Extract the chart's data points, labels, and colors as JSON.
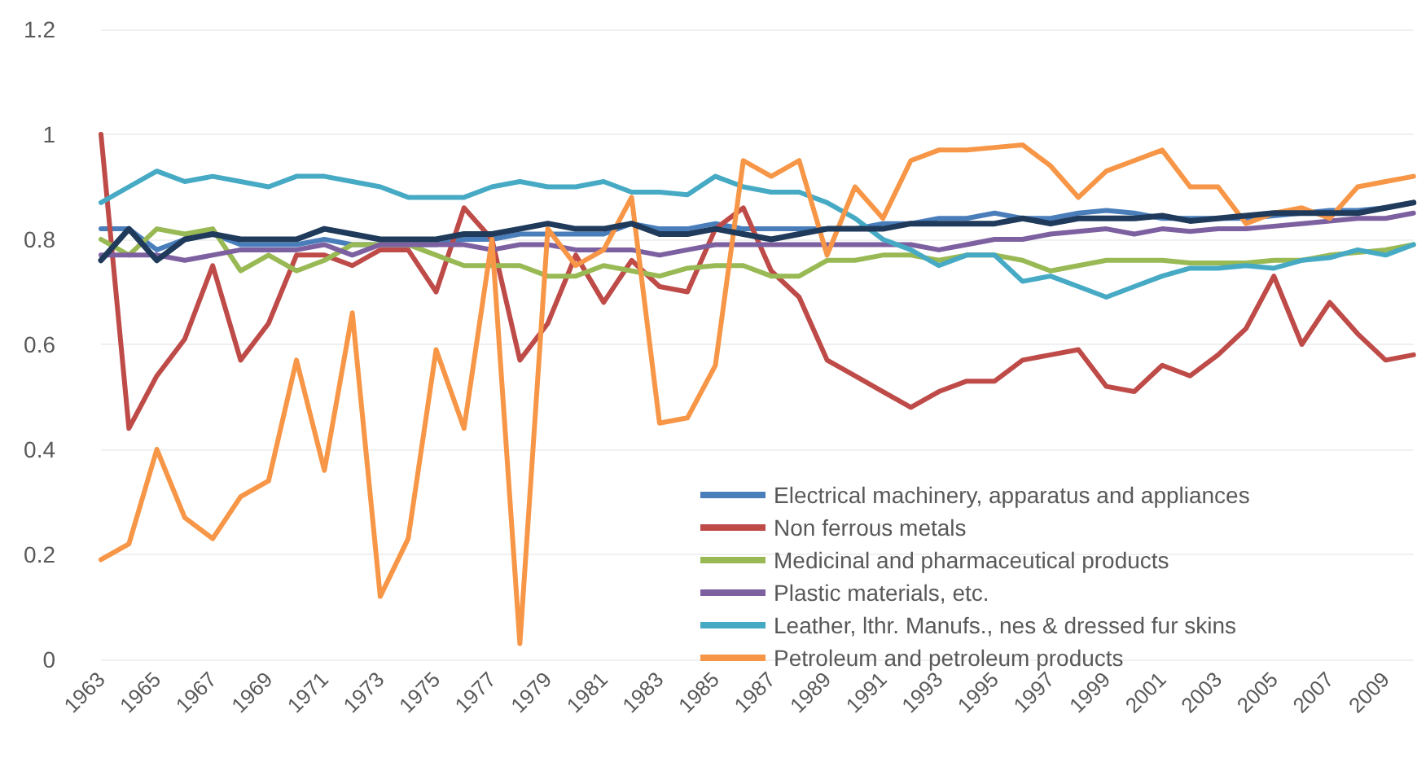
{
  "chart_data": {
    "type": "line",
    "categories": [
      "1963",
      null,
      "1965",
      null,
      "1967",
      null,
      "1969",
      null,
      "1971",
      null,
      "1973",
      null,
      "1975",
      null,
      "1977",
      null,
      "1979",
      null,
      "1981",
      null,
      "1983",
      null,
      "1985",
      null,
      "1987",
      null,
      "1989",
      null,
      "1991",
      null,
      "1993",
      null,
      "1995",
      null,
      "1997",
      null,
      "1999",
      null,
      "2001",
      null,
      "2003",
      null,
      "2005",
      null,
      "2007",
      null,
      "2009",
      null
    ],
    "ylim": [
      0,
      1.2
    ],
    "yticks": [
      0,
      0.2,
      0.4,
      0.6,
      0.8,
      1,
      1.2
    ],
    "grid": "y",
    "legend": "bottom right",
    "marker": "none",
    "line_style": "solid",
    "series": [
      {
        "name": "Electrical machinery, apparatus and appliances",
        "color": "#4a7ebb",
        "values": [
          0.82,
          0.82,
          0.78,
          0.8,
          0.81,
          0.79,
          0.79,
          0.79,
          0.8,
          0.79,
          0.79,
          0.79,
          0.79,
          0.8,
          0.8,
          0.81,
          0.81,
          0.81,
          0.81,
          0.83,
          0.82,
          0.82,
          0.83,
          0.82,
          0.82,
          0.82,
          0.82,
          0.82,
          0.83,
          0.83,
          0.84,
          0.84,
          0.85,
          0.84,
          0.84,
          0.85,
          0.855,
          0.85,
          0.84,
          0.84,
          0.84,
          0.84,
          0.845,
          0.85,
          0.855,
          0.855,
          0.86,
          0.87
        ]
      },
      {
        "name": "Non ferrous metals",
        "color": "#be4b48",
        "values": [
          1.0,
          0.44,
          0.54,
          0.61,
          0.75,
          0.57,
          0.64,
          0.77,
          0.77,
          0.75,
          0.78,
          0.78,
          0.7,
          0.86,
          0.8,
          0.57,
          0.64,
          0.77,
          0.68,
          0.76,
          0.71,
          0.7,
          0.82,
          0.86,
          0.74,
          0.69,
          0.57,
          0.54,
          0.51,
          0.48,
          0.51,
          0.53,
          0.53,
          0.57,
          0.58,
          0.59,
          0.52,
          0.51,
          0.56,
          0.54,
          0.58,
          0.63,
          0.73,
          0.6,
          0.68,
          0.62,
          0.57,
          0.58
        ]
      },
      {
        "name": "Medicinal and pharmaceutical products",
        "color": "#98b954",
        "values": [
          0.8,
          0.77,
          0.82,
          0.81,
          0.82,
          0.74,
          0.77,
          0.74,
          0.76,
          0.79,
          0.79,
          0.79,
          0.77,
          0.75,
          0.75,
          0.75,
          0.73,
          0.73,
          0.75,
          0.74,
          0.73,
          0.745,
          0.75,
          0.75,
          0.73,
          0.73,
          0.76,
          0.76,
          0.77,
          0.77,
          0.76,
          0.77,
          0.77,
          0.76,
          0.74,
          0.75,
          0.76,
          0.76,
          0.76,
          0.755,
          0.755,
          0.755,
          0.76,
          0.76,
          0.77,
          0.775,
          0.78,
          0.79
        ]
      },
      {
        "name": "Plastic materials, etc.",
        "color": "#7d60a0",
        "values": [
          0.77,
          0.77,
          0.77,
          0.76,
          0.77,
          0.78,
          0.78,
          0.78,
          0.79,
          0.77,
          0.79,
          0.79,
          0.79,
          0.79,
          0.78,
          0.79,
          0.79,
          0.78,
          0.78,
          0.78,
          0.77,
          0.78,
          0.79,
          0.79,
          0.79,
          0.79,
          0.79,
          0.79,
          0.79,
          0.79,
          0.78,
          0.79,
          0.8,
          0.8,
          0.81,
          0.815,
          0.82,
          0.81,
          0.82,
          0.815,
          0.82,
          0.82,
          0.825,
          0.83,
          0.835,
          0.84,
          0.84,
          0.85
        ]
      },
      {
        "name": "Leather, lthr. Manufs., nes & dressed fur skins",
        "color": "#46aac5",
        "values": [
          0.87,
          0.9,
          0.93,
          0.91,
          0.92,
          0.91,
          0.9,
          0.92,
          0.92,
          0.91,
          0.9,
          0.88,
          0.88,
          0.88,
          0.9,
          0.91,
          0.9,
          0.9,
          0.91,
          0.89,
          0.89,
          0.885,
          0.92,
          0.9,
          0.89,
          0.89,
          0.87,
          0.84,
          0.8,
          0.78,
          0.75,
          0.77,
          0.77,
          0.72,
          0.73,
          0.71,
          0.69,
          0.71,
          0.73,
          0.745,
          0.745,
          0.75,
          0.745,
          0.76,
          0.765,
          0.78,
          0.77,
          0.79
        ]
      },
      {
        "name": "Petroleum and petroleum products",
        "color": "#f79646",
        "values": [
          0.19,
          0.22,
          0.4,
          0.27,
          0.23,
          0.31,
          0.34,
          0.57,
          0.36,
          0.66,
          0.12,
          0.23,
          0.59,
          0.44,
          0.8,
          0.03,
          0.82,
          0.75,
          0.78,
          0.88,
          0.45,
          0.46,
          0.56,
          0.95,
          0.92,
          0.95,
          0.77,
          0.9,
          0.84,
          0.95,
          0.97,
          0.97,
          0.975,
          0.98,
          0.94,
          0.88,
          0.93,
          0.95,
          0.97,
          0.9,
          0.9,
          0.83,
          0.85,
          0.86,
          0.84,
          0.9,
          0.91,
          0.92
        ]
      },
      {
        "color": "#1f3a5a",
        "values": [
          0.76,
          0.82,
          0.76,
          0.8,
          0.81,
          0.8,
          0.8,
          0.8,
          0.82,
          0.81,
          0.8,
          0.8,
          0.8,
          0.81,
          0.81,
          0.82,
          0.83,
          0.82,
          0.82,
          0.83,
          0.81,
          0.81,
          0.82,
          0.81,
          0.8,
          0.81,
          0.82,
          0.82,
          0.82,
          0.83,
          0.83,
          0.83,
          0.83,
          0.84,
          0.83,
          0.84,
          0.84,
          0.84,
          0.845,
          0.835,
          0.84,
          0.845,
          0.85,
          0.85,
          0.85,
          0.85,
          0.86,
          0.87
        ]
      }
    ]
  }
}
